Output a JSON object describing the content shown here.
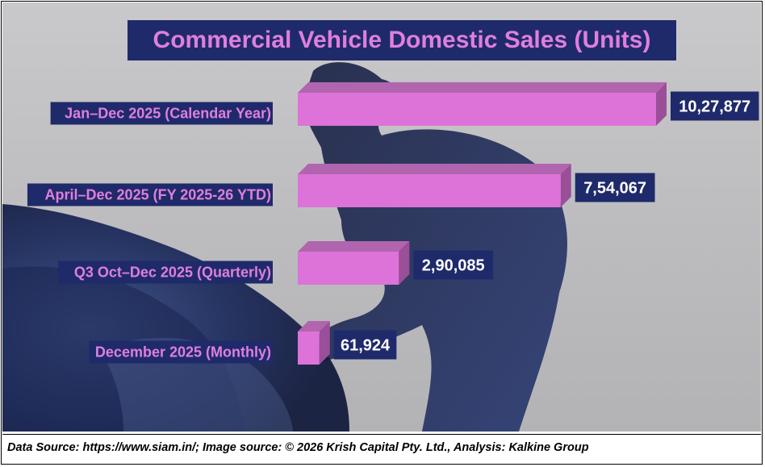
{
  "chart_data": {
    "type": "bar",
    "orientation": "horizontal",
    "title": "Commercial Vehicle Domestic Sales (Units)",
    "categories": [
      "Jan–Dec 2025 (Calendar Year)",
      "April–Dec 2025 (FY 2025-26 YTD)",
      "Q3 Oct–Dec 2025 (Quarterly)",
      "December 2025 (Monthly)"
    ],
    "values": [
      1027877,
      754067,
      290085,
      61924
    ],
    "value_labels": [
      "10,27,877",
      "7,54,067",
      "2,90,085",
      "61,924"
    ],
    "xlabel": "",
    "ylabel": "",
    "xlim": [
      0,
      1130000
    ],
    "grid": false,
    "legend": "none"
  },
  "colors": {
    "bar_front": "#dd72d8",
    "bar_top": "#b065ae",
    "bar_side": "#9a4f98",
    "label_box": "#1f2a6b",
    "category_text": "#df7fdc",
    "value_text": "#ffffff",
    "title_text": "#df7fdc"
  },
  "footer": {
    "text": "Data Source: https://www.siam.in/; Image source: © 2026 Krish Capital Pty. Ltd., Analysis: Kalkine Group"
  }
}
